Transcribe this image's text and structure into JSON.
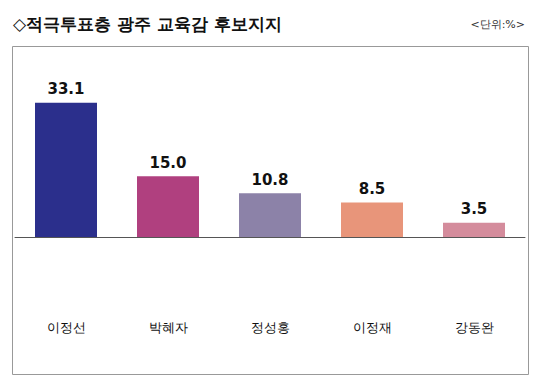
{
  "chart_data": {
    "type": "bar",
    "title": "◇적극투표층 광주 교육감 후보지지",
    "subtitle": "<단위:%>",
    "categories": [
      "이정선",
      "박혜자",
      "정성홍",
      "이정재",
      "강동완"
    ],
    "values": [
      33.1,
      15.0,
      10.8,
      8.5,
      3.5
    ],
    "value_labels": [
      "33.1",
      "15.0",
      "10.8",
      "8.5",
      "3.5"
    ],
    "colors": [
      "#2b2f8c",
      "#b0407f",
      "#8c82a8",
      "#e8957a",
      "#d48c9c"
    ],
    "ylim": [
      0,
      36
    ],
    "grid": false,
    "data_labels": true,
    "tick_labels": "x"
  }
}
